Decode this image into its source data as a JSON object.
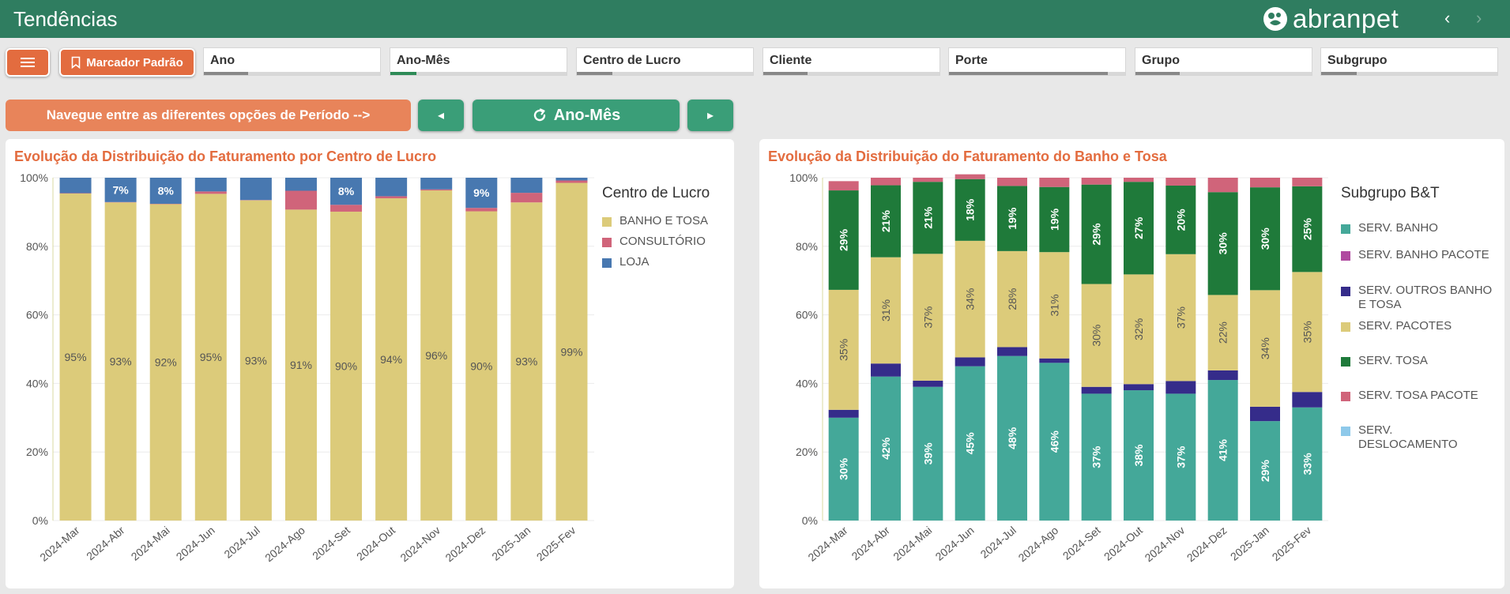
{
  "header": {
    "title": "Tendências",
    "logo_text": "abranpet",
    "back_arrow": "‹",
    "forward_arrow": "›"
  },
  "toolbar": {
    "menu_label": "Menu",
    "bookmark_label": "Marcador Padrão"
  },
  "filters": [
    {
      "label": "Ano",
      "accent": "#888888",
      "fill": 0.25
    },
    {
      "label": "Ano-Mês",
      "accent": "#2e8b57",
      "fill": 0.15
    },
    {
      "label": "Centro de Lucro",
      "accent": "#888888",
      "fill": 0.2
    },
    {
      "label": "Cliente",
      "accent": "#888888",
      "fill": 0.25
    },
    {
      "label": "Porte",
      "accent": "#888888",
      "fill": 0.9
    },
    {
      "label": "Grupo",
      "accent": "#888888",
      "fill": 0.25
    },
    {
      "label": "Subgrupo",
      "accent": "#888888",
      "fill": 0.2
    }
  ],
  "period": {
    "hint": "Navegue entre as diferentes opções de Período -->",
    "current": "Ano-Mês",
    "prev_icon": "◂",
    "next_icon": "▸"
  },
  "colors": {
    "header": "#2f7d60",
    "accent": "#e36c3f",
    "button_green": "#3a9e78"
  },
  "chart_data": [
    {
      "type": "bar",
      "stacked": true,
      "title": "Evolução da Distribuição do Faturamento por Centro de Lucro",
      "legend_title": "Centro de Lucro",
      "legend_position": "right",
      "ylim": [
        0,
        100
      ],
      "y_ticks": [
        "0%",
        "20%",
        "40%",
        "60%",
        "80%",
        "100%"
      ],
      "categories": [
        "2024-Mar",
        "2024-Abr",
        "2024-Mai",
        "2024-Jun",
        "2024-Jul",
        "2024-Ago",
        "2024-Set",
        "2024-Out",
        "2024-Nov",
        "2024-Dez",
        "2025-Jan",
        "2025-Fev"
      ],
      "series": [
        {
          "name": "BANHO E TOSA",
          "color": "#dccb7a",
          "label_color": "#555555",
          "values": [
            95.4,
            92.8,
            92.3,
            95.3,
            93.4,
            90.7,
            90.1,
            94.0,
            96.3,
            90.2,
            92.8,
            98.5
          ],
          "labels": [
            "95%",
            "93%",
            "92%",
            "95%",
            "93%",
            "91%",
            "90%",
            "94%",
            "96%",
            "90%",
            "93%",
            "99%"
          ]
        },
        {
          "name": "CONSULTÓRIO",
          "color": "#d0647a",
          "label_color": "#ffffff",
          "values": [
            0.1,
            0.1,
            0.1,
            0.7,
            0.1,
            5.5,
            2.0,
            0.6,
            0.3,
            1.0,
            2.8,
            0.7
          ],
          "labels": [
            "",
            "",
            "",
            "",
            "",
            "",
            "",
            "",
            "",
            "",
            "",
            ""
          ]
        },
        {
          "name": "LOJA",
          "color": "#4878b0",
          "label_color": "#ffffff",
          "values": [
            4.5,
            7.1,
            7.6,
            4.0,
            6.5,
            3.8,
            7.9,
            5.4,
            3.4,
            8.8,
            4.4,
            0.8
          ],
          "labels": [
            "",
            "7%",
            "8%",
            "",
            "",
            "",
            "8%",
            "",
            "",
            "9%",
            "",
            ""
          ]
        }
      ]
    },
    {
      "type": "bar",
      "stacked": true,
      "title": "Evolução da Distribuição do Faturamento do Banho e Tosa",
      "legend_title": "Subgrupo B&T",
      "legend_position": "right",
      "ylim": [
        0,
        100
      ],
      "y_ticks": [
        "0%",
        "20%",
        "40%",
        "60%",
        "80%",
        "100%"
      ],
      "categories": [
        "2024-Mar",
        "2024-Abr",
        "2024-Mai",
        "2024-Jun",
        "2024-Jul",
        "2024-Ago",
        "2024-Set",
        "2024-Out",
        "2024-Nov",
        "2024-Dez",
        "2025-Jan",
        "2025-Fev"
      ],
      "series": [
        {
          "name": "SERV. BANHO",
          "color": "#44a899",
          "label_color": "#ffffff",
          "values": [
            30,
            42,
            39,
            45,
            48,
            46,
            37,
            38,
            37,
            41,
            29,
            33
          ],
          "labels": [
            "30%",
            "42%",
            "39%",
            "45%",
            "48%",
            "46%",
            "37%",
            "38%",
            "37%",
            "41%",
            "29%",
            "33%"
          ]
        },
        {
          "name": "SERV. BANHO PACOTE",
          "color": "#b04aa0",
          "label_color": "#ffffff",
          "values": [
            0,
            0,
            0,
            0,
            0,
            0,
            0,
            0,
            0,
            0,
            0,
            0
          ],
          "labels": [
            "",
            "",
            "",
            "",
            "",
            "",
            "",
            "",
            "",
            "",
            "",
            ""
          ]
        },
        {
          "name": "SERV. OUTROS BANHO E TOSA",
          "color": "#352c8a",
          "label_color": "#ffffff",
          "values": [
            2.3,
            3.8,
            1.8,
            2.6,
            2.6,
            1.3,
            2.0,
            1.8,
            3.7,
            2.8,
            4.2,
            4.5
          ],
          "labels": [
            "",
            "",
            "",
            "",
            "",
            "",
            "",
            "",
            "",
            "",
            "",
            ""
          ]
        },
        {
          "name": "SERV. PACOTES",
          "color": "#dccb7a",
          "label_color": "#555555",
          "values": [
            35,
            31,
            37,
            34,
            28,
            31,
            30,
            32,
            37,
            22,
            34,
            35
          ],
          "labels": [
            "35%",
            "31%",
            "37%",
            "34%",
            "28%",
            "31%",
            "30%",
            "32%",
            "37%",
            "22%",
            "34%",
            "35%"
          ]
        },
        {
          "name": "SERV. TOSA",
          "color": "#1f7a3a",
          "label_color": "#ffffff",
          "values": [
            29,
            21,
            21,
            18,
            19,
            19,
            29,
            27,
            20,
            30,
            30,
            25
          ],
          "labels": [
            "29%",
            "21%",
            "21%",
            "18%",
            "19%",
            "19%",
            "29%",
            "27%",
            "20%",
            "30%",
            "30%",
            "25%"
          ]
        },
        {
          "name": "SERV. TOSA PACOTE",
          "color": "#d0647a",
          "label_color": "#ffffff",
          "values": [
            2.7,
            2.2,
            1.2,
            1.4,
            2.4,
            2.7,
            2.0,
            1.2,
            2.3,
            4.2,
            2.8,
            2.5
          ],
          "labels": [
            "",
            "",
            "",
            "",
            "",
            "",
            "",
            "",
            "",
            "",
            "",
            ""
          ]
        },
        {
          "name": "SERV. DESLOCAMENTO",
          "color": "#8ec9ea",
          "label_color": "#ffffff",
          "values": [
            0,
            0,
            0,
            0,
            0,
            0,
            0,
            0,
            0,
            0,
            0,
            0
          ],
          "labels": [
            "",
            "",
            "",
            "",
            "",
            "",
            "",
            "",
            "",
            "",
            "",
            ""
          ]
        }
      ]
    }
  ]
}
